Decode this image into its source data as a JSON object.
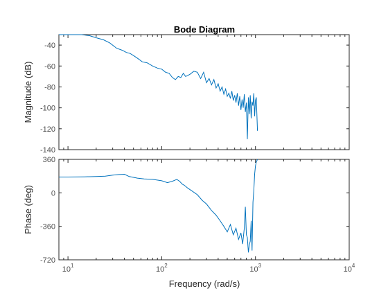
{
  "chart_data": {
    "type": "line",
    "title": "Bode Diagram",
    "xlabel": "Frequency  (rad/s)",
    "xscale": "log",
    "xlim": [
      8,
      10000
    ],
    "x_ticks": [
      {
        "value": 10,
        "base": "10",
        "exp": "1"
      },
      {
        "value": 100,
        "base": "10",
        "exp": "2"
      },
      {
        "value": 1000,
        "base": "10",
        "exp": "3"
      },
      {
        "value": 10000,
        "base": "10",
        "exp": "4"
      }
    ],
    "line_color": "#0072bd",
    "grid": false,
    "panels": [
      {
        "name": "magnitude",
        "ylabel": "Magnitude (dB)",
        "ylim": [
          -140,
          -30
        ],
        "y_ticks": [
          "-40",
          "-60",
          "-80",
          "-100",
          "-120",
          "-140"
        ],
        "y_tick_values": [
          -40,
          -60,
          -80,
          -100,
          -120,
          -140
        ],
        "x": [
          8,
          9,
          10,
          12,
          14,
          17,
          20,
          24,
          28,
          33,
          38,
          42,
          46,
          50,
          56,
          62,
          70,
          80,
          90,
          100,
          110,
          120,
          130,
          140,
          150,
          160,
          170,
          180,
          200,
          220,
          240,
          260,
          280,
          300,
          320,
          340,
          360,
          380,
          400,
          420,
          440,
          460,
          480,
          500,
          520,
          540,
          560,
          580,
          600,
          620,
          640,
          660,
          680,
          700,
          720,
          740,
          760,
          780,
          800,
          820,
          840,
          860,
          880,
          900,
          920,
          940,
          960,
          980,
          1000,
          1020,
          1050
        ],
        "y": [
          -29,
          -29,
          -29,
          -29,
          -30,
          -31,
          -33,
          -35,
          -38,
          -43,
          -45,
          -47,
          -48,
          -50,
          -53,
          -56,
          -57,
          -60,
          -62,
          -63,
          -66,
          -67,
          -71,
          -73,
          -70,
          -71,
          -67,
          -70,
          -68,
          -65,
          -66,
          -72,
          -66,
          -76,
          -72,
          -78,
          -73,
          -81,
          -77,
          -84,
          -80,
          -87,
          -82,
          -89,
          -86,
          -91,
          -84,
          -93,
          -88,
          -95,
          -86,
          -98,
          -89,
          -102,
          -92,
          -100,
          -87,
          -104,
          -95,
          -130,
          -90,
          -106,
          -88,
          -110,
          -94,
          -98,
          -86,
          -108,
          -93,
          -90,
          -122
        ]
      },
      {
        "name": "phase",
        "ylabel": "Phase (deg)",
        "ylim": [
          -720,
          360
        ],
        "y_ticks": [
          "360",
          "0",
          "-360",
          "-720"
        ],
        "y_tick_values": [
          360,
          0,
          -360,
          -720
        ],
        "x": [
          8,
          10,
          15,
          20,
          25,
          30,
          35,
          40,
          45,
          55,
          65,
          80,
          100,
          115,
          130,
          145,
          155,
          165,
          175,
          190,
          210,
          240,
          270,
          300,
          340,
          380,
          420,
          460,
          500,
          540,
          580,
          620,
          660,
          700,
          730,
          760,
          780,
          800,
          820,
          840,
          860,
          880,
          900,
          920,
          940,
          960,
          980,
          1000,
          1020,
          1050
        ],
        "y": [
          170,
          170,
          172,
          175,
          180,
          190,
          197,
          200,
          175,
          158,
          150,
          145,
          130,
          110,
          125,
          145,
          125,
          95,
          80,
          50,
          20,
          -20,
          -80,
          -120,
          -190,
          -240,
          -300,
          -360,
          -420,
          -340,
          -450,
          -380,
          -500,
          -430,
          -550,
          -380,
          -150,
          -450,
          -480,
          -640,
          -560,
          -520,
          -300,
          -620,
          -100,
          20,
          200,
          290,
          330,
          360
        ]
      }
    ]
  }
}
